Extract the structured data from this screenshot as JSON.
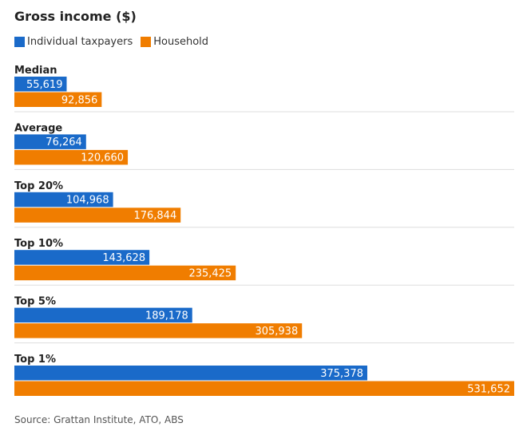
{
  "chart_data": {
    "type": "bar",
    "orientation": "horizontal",
    "title": "Gross income ($)",
    "categories": [
      "Median",
      "Average",
      "Top 20%",
      "Top 10%",
      "Top 5%",
      "Top 1%"
    ],
    "series": [
      {
        "name": "Individual taxpayers",
        "color": "#1a6ac9",
        "values": [
          55619,
          76264,
          104968,
          143628,
          189178,
          375378
        ]
      },
      {
        "name": "Household",
        "color": "#f07d00",
        "values": [
          92856,
          120660,
          176844,
          235425,
          305938,
          531652
        ]
      }
    ],
    "xlim": [
      0,
      531652
    ],
    "legend_position": "top-left",
    "grid": false,
    "source": "Source: Grattan Institute, ATO, ABS"
  }
}
